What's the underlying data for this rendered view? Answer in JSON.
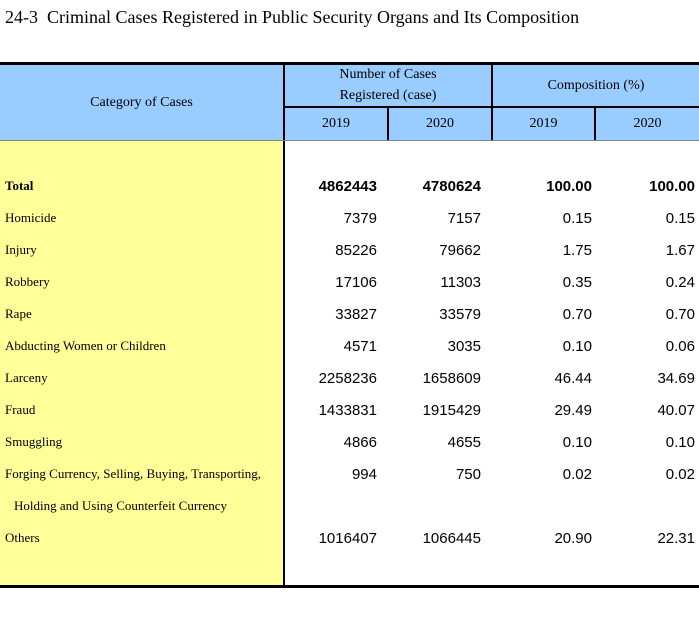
{
  "title": "24-3  Criminal Cases Registered in Public Security Organs and Its Composition",
  "colors": {
    "header_bg": "#99CCFF",
    "category_bg": "#FFFF99",
    "border": "#000000",
    "header_body_rule": "#848484",
    "text": "#000000"
  },
  "table": {
    "category_header": "Category of Cases",
    "cases_header_line1": "Number of Cases",
    "cases_header_line2": "Registered (case)",
    "composition_header": "Composition (%)",
    "year_cols": {
      "cases_2019": "2019",
      "cases_2020": "2020",
      "comp_2019": "2019",
      "comp_2020": "2020"
    },
    "rows": [
      {
        "label": "Total",
        "n2019": "4862443",
        "n2020": "4780624",
        "c2019": "100.00",
        "c2020": "100.00"
      },
      {
        "label": "Homicide",
        "n2019": "7379",
        "n2020": "7157",
        "c2019": "0.15",
        "c2020": "0.15"
      },
      {
        "label": "Injury",
        "n2019": "85226",
        "n2020": "79662",
        "c2019": "1.75",
        "c2020": "1.67"
      },
      {
        "label": "Robbery",
        "n2019": "17106",
        "n2020": "11303",
        "c2019": "0.35",
        "c2020": "0.24"
      },
      {
        "label": "Rape",
        "n2019": "33827",
        "n2020": "33579",
        "c2019": "0.70",
        "c2020": "0.70"
      },
      {
        "label": "Abducting Women or Children",
        "n2019": "4571",
        "n2020": "3035",
        "c2019": "0.10",
        "c2020": "0.06"
      },
      {
        "label": "Larceny",
        "n2019": "2258236",
        "n2020": "1658609",
        "c2019": "46.44",
        "c2020": "34.69"
      },
      {
        "label": "Fraud",
        "n2019": "1433831",
        "n2020": "1915429",
        "c2019": "29.49",
        "c2020": "40.07"
      },
      {
        "label": "Smuggling",
        "n2019": "4866",
        "n2020": "4655",
        "c2019": "0.10",
        "c2020": "0.10"
      },
      {
        "label": "Forging Currency, Selling, Buying, Transporting,",
        "label2": "Holding and Using Counterfeit Currency",
        "n2019": "994",
        "n2020": "750",
        "c2019": "0.02",
        "c2020": "0.02"
      },
      {
        "label": "Others",
        "n2019": "1016407",
        "n2020": "1066445",
        "c2019": "20.90",
        "c2020": "22.31"
      }
    ]
  }
}
